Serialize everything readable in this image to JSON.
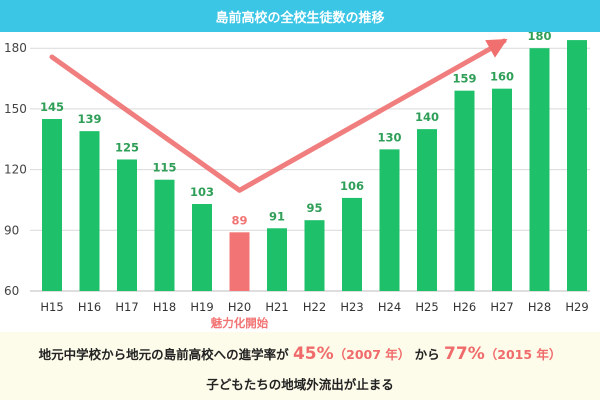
{
  "title": "島前高校の全校生徒数の推移",
  "chart_data": {
    "type": "bar",
    "categories": [
      "H15",
      "H16",
      "H17",
      "H18",
      "H19",
      "H20",
      "H21",
      "H22",
      "H23",
      "H24",
      "H25",
      "H26",
      "H27",
      "H28",
      "H29"
    ],
    "values": [
      145,
      139,
      125,
      115,
      103,
      89,
      91,
      95,
      106,
      130,
      140,
      159,
      160,
      180,
      184
    ],
    "highlight_index": 5,
    "highlight_label": "魅力化開始",
    "yticks": [
      60,
      90,
      120,
      150,
      180
    ],
    "ylim": [
      60,
      188
    ],
    "grid": true,
    "colors": {
      "bar": "#1ec16a",
      "highlight": "#f27474",
      "arrow": "#f07070",
      "label": "#2f9e57"
    }
  },
  "footer": {
    "line1_pre": "地元中学校から地元の島前高校への進学率が",
    "rate1": "45%",
    "year1": "（2007 年）",
    "middle": "から",
    "rate2": "77%",
    "year2": "（2015 年）",
    "line2": "子どもたちの地域外流出が止まる"
  }
}
